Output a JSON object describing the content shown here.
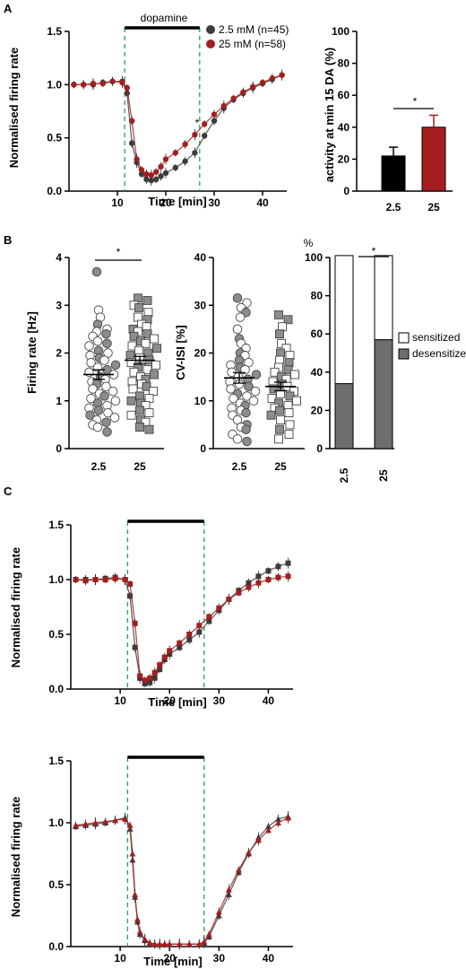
{
  "panel_labels": {
    "a": "A",
    "b": "B",
    "c": "C"
  },
  "colors": {
    "c25": "#3c3c3c",
    "c250": "#a31f1f",
    "stim": "#2e9e4b",
    "gray": "#8c8c8c",
    "desens": "#6e6e6e"
  },
  "chart_data": [
    {
      "id": "A-time",
      "type": "line",
      "title": "",
      "xlabel": "Time [min]",
      "ylabel": "Normalised firing rate",
      "xlim": [
        0,
        45
      ],
      "ylim": [
        0,
        1.5
      ],
      "xticks": [
        10,
        20,
        30,
        40
      ],
      "yticks": [
        0.0,
        0.5,
        1.0,
        1.5
      ],
      "ytick_labels": [
        "0.0",
        "0.5",
        "1.0",
        "1.5"
      ],
      "stim_bar": {
        "label": "dopamine",
        "start": 11.5,
        "end": 27
      },
      "annotation": "*",
      "legend": [
        "2.5 mM (n=45)",
        "25 mM (n=58)"
      ],
      "series": [
        {
          "name": "2.5 mM (n=45)",
          "color": "#3c3c3c",
          "x": [
            1,
            3,
            5,
            7,
            9,
            11,
            12,
            13,
            14,
            15,
            16,
            17,
            18,
            19,
            20,
            22,
            24,
            26,
            28,
            30,
            32,
            34,
            36,
            38,
            40,
            42,
            44
          ],
          "y": [
            1.0,
            1.0,
            1.0,
            1.02,
            1.03,
            1.03,
            0.92,
            0.45,
            0.27,
            0.16,
            0.11,
            0.1,
            0.11,
            0.14,
            0.17,
            0.22,
            0.28,
            0.36,
            0.52,
            0.66,
            0.78,
            0.86,
            0.92,
            0.97,
            1.01,
            1.05,
            1.09
          ]
        },
        {
          "name": "25 mM (n=58)",
          "color": "#a31f1f",
          "x": [
            1,
            3,
            5,
            7,
            9,
            11,
            12,
            13,
            14,
            15,
            16,
            17,
            18,
            19,
            20,
            22,
            24,
            26,
            28,
            30,
            32,
            34,
            36,
            38,
            40,
            42,
            44
          ],
          "y": [
            1.0,
            1.0,
            1.01,
            1.01,
            1.03,
            1.02,
            0.97,
            0.66,
            0.3,
            0.2,
            0.16,
            0.15,
            0.18,
            0.23,
            0.3,
            0.36,
            0.44,
            0.53,
            0.63,
            0.72,
            0.8,
            0.87,
            0.93,
            0.98,
            1.02,
            1.06,
            1.09
          ]
        }
      ]
    },
    {
      "id": "A-bar",
      "type": "bar",
      "title": "",
      "xlabel": "",
      "ylabel": "activity at min 15 DA (%)",
      "categories": [
        "2.5",
        "25"
      ],
      "values": [
        22,
        40
      ],
      "errors": [
        5.5,
        7.5
      ],
      "bar_colors": [
        "#000000",
        "#a31f1f"
      ],
      "ylim": [
        0,
        100
      ],
      "yticks": [
        0,
        20,
        40,
        60,
        80,
        100
      ],
      "annotation": "*"
    },
    {
      "id": "B-rate",
      "type": "scatter",
      "title": "",
      "xlabel": "",
      "ylabel": "Firing rate [Hz]",
      "categories": [
        "2.5",
        "25"
      ],
      "ylim": [
        0,
        4
      ],
      "yticks": [
        0,
        1,
        2,
        3,
        4
      ],
      "annotation": "*",
      "means": [
        1.55,
        1.85
      ],
      "sems": [
        0.1,
        0.08
      ],
      "series": [
        {
          "name": "2.5",
          "values": [
            3.7,
            2.9,
            2.75,
            2.6,
            2.5,
            2.45,
            2.4,
            2.35,
            2.25,
            2.2,
            2.15,
            2.05,
            2.0,
            1.95,
            1.9,
            1.85,
            1.8,
            1.75,
            1.7,
            1.65,
            1.6,
            1.55,
            1.5,
            1.45,
            1.4,
            1.35,
            1.3,
            1.25,
            1.2,
            1.15,
            1.1,
            1.05,
            1.0,
            0.95,
            0.9,
            0.85,
            0.8,
            0.75,
            0.7,
            0.65,
            0.6,
            0.55,
            0.5,
            0.45,
            0.35
          ]
        },
        {
          "name": "25",
          "values": [
            3.15,
            3.1,
            3.0,
            2.95,
            2.85,
            2.75,
            2.7,
            2.6,
            2.55,
            2.5,
            2.45,
            2.4,
            2.35,
            2.3,
            2.25,
            2.2,
            2.15,
            2.1,
            2.05,
            2.0,
            1.95,
            1.9,
            1.85,
            1.8,
            1.75,
            1.7,
            1.65,
            1.6,
            1.55,
            1.5,
            1.45,
            1.4,
            1.35,
            1.3,
            1.25,
            1.2,
            1.1,
            1.05,
            1.0,
            0.95,
            0.9,
            0.8,
            0.75,
            0.7,
            0.6,
            0.55,
            0.45,
            0.4
          ]
        }
      ]
    },
    {
      "id": "B-cv",
      "type": "scatter",
      "title": "",
      "xlabel": "",
      "ylabel": "CV-ISI [%]",
      "categories": [
        "2.5",
        "25"
      ],
      "ylim": [
        0,
        40
      ],
      "yticks": [
        0,
        10,
        20,
        30,
        40
      ],
      "means": [
        14.8,
        13.0
      ],
      "sems": [
        1.1,
        0.9
      ],
      "series": [
        {
          "name": "2.5",
          "values": [
            31.5,
            30.5,
            29.5,
            28.5,
            27.5,
            25,
            23,
            22,
            21,
            20,
            19.5,
            18.5,
            18,
            17.5,
            17,
            16.5,
            16,
            15.5,
            15,
            14.5,
            14,
            13.5,
            13,
            12.5,
            12,
            11.5,
            11,
            10.5,
            10,
            9.5,
            9,
            8.5,
            8,
            7.5,
            7,
            6,
            5,
            4.5,
            4,
            3,
            2,
            1.5
          ]
        },
        {
          "name": "25",
          "values": [
            28,
            27,
            25.5,
            24,
            22,
            21,
            20,
            19.5,
            18.5,
            18,
            17,
            16.5,
            16,
            15.5,
            15,
            14.5,
            14,
            13.5,
            13,
            12.5,
            12,
            11.5,
            11,
            10.5,
            10,
            9.5,
            9,
            8.5,
            8,
            7.5,
            7,
            6,
            5,
            4,
            3,
            2
          ]
        }
      ]
    },
    {
      "id": "B-stack",
      "type": "bar",
      "title": "",
      "xlabel": "",
      "ylabel": "%",
      "categories": [
        "2.5",
        "25"
      ],
      "ylim": [
        0,
        100
      ],
      "yticks": [
        0,
        20,
        40,
        60,
        80,
        100
      ],
      "annotation": "*",
      "legend": [
        "sensitized",
        "desensitized"
      ],
      "series": [
        {
          "name": "desensitized",
          "values": [
            34,
            57
          ]
        },
        {
          "name": "sensitized",
          "values": [
            67,
            44
          ]
        }
      ]
    },
    {
      "id": "C-top",
      "type": "line",
      "title": "",
      "xlabel": "Time [min]",
      "ylabel": "Normalised firing rate",
      "xlim": [
        0,
        45
      ],
      "ylim": [
        0,
        1.5
      ],
      "xticks": [
        10,
        20,
        30,
        40
      ],
      "yticks": [
        0.0,
        0.5,
        1.0,
        1.5
      ],
      "ytick_labels": [
        "0.0",
        "0.5",
        "1.0",
        "1.5"
      ],
      "stim_bar": {
        "label": "",
        "start": 11.5,
        "end": 27
      },
      "series": [
        {
          "name": "",
          "color": "#3c3c3c",
          "x": [
            1,
            3,
            5,
            7,
            9,
            11,
            12,
            13,
            14,
            15,
            16,
            17,
            18,
            19,
            20,
            22,
            24,
            26,
            28,
            30,
            32,
            34,
            36,
            38,
            40,
            42,
            44
          ],
          "y": [
            1.0,
            1.0,
            1.0,
            1.01,
            1.02,
            1.0,
            0.85,
            0.38,
            0.1,
            0.05,
            0.06,
            0.1,
            0.18,
            0.27,
            0.32,
            0.38,
            0.45,
            0.52,
            0.62,
            0.72,
            0.82,
            0.9,
            0.97,
            1.03,
            1.08,
            1.12,
            1.15
          ]
        },
        {
          "name": "",
          "color": "#a31f1f",
          "x": [
            1,
            3,
            5,
            7,
            9,
            11,
            12,
            13,
            14,
            15,
            16,
            17,
            18,
            19,
            20,
            22,
            24,
            26,
            28,
            30,
            32,
            34,
            36,
            38,
            40,
            42,
            44
          ],
          "y": [
            1.0,
            0.99,
            1.0,
            1.0,
            1.01,
            1.0,
            0.96,
            0.6,
            0.12,
            0.08,
            0.1,
            0.15,
            0.22,
            0.29,
            0.35,
            0.42,
            0.5,
            0.58,
            0.66,
            0.74,
            0.82,
            0.88,
            0.93,
            0.97,
            1.0,
            1.02,
            1.03
          ]
        }
      ]
    },
    {
      "id": "C-bottom",
      "type": "line",
      "title": "",
      "xlabel": "Time [min]",
      "ylabel": "Normalised firing rate",
      "xlim": [
        0,
        45
      ],
      "ylim": [
        0,
        1.5
      ],
      "xticks": [
        10,
        20,
        30,
        40
      ],
      "yticks": [
        0.0,
        0.5,
        1.0,
        1.5
      ],
      "ytick_labels": [
        "0.0",
        "0.5",
        "1.0",
        "1.5"
      ],
      "stim_bar": {
        "label": "",
        "start": 11.5,
        "end": 27
      },
      "series": [
        {
          "name": "",
          "color": "#3c3c3c",
          "x": [
            1,
            3,
            5,
            7,
            9,
            11,
            12,
            12.5,
            13,
            13.5,
            14,
            15,
            16,
            17,
            18,
            19,
            20,
            22,
            24,
            26,
            27,
            28,
            30,
            32,
            34,
            36,
            38,
            40,
            42,
            44
          ],
          "y": [
            0.97,
            0.98,
            0.99,
            1.0,
            1.02,
            1.04,
            0.95,
            0.7,
            0.4,
            0.2,
            0.1,
            0.05,
            0.03,
            0.02,
            0.02,
            0.02,
            0.02,
            0.02,
            0.02,
            0.02,
            0.03,
            0.08,
            0.25,
            0.42,
            0.6,
            0.75,
            0.88,
            0.97,
            1.03,
            1.05
          ]
        },
        {
          "name": "",
          "color": "#a31f1f",
          "x": [
            1,
            3,
            5,
            7,
            9,
            11,
            12,
            12.5,
            13,
            13.5,
            14,
            15,
            16,
            17,
            18,
            19,
            20,
            22,
            24,
            26,
            27,
            28,
            30,
            32,
            34,
            36,
            38,
            40,
            42,
            44
          ],
          "y": [
            0.98,
            0.99,
            1.0,
            1.01,
            1.02,
            1.03,
            0.98,
            0.75,
            0.42,
            0.22,
            0.12,
            0.06,
            0.03,
            0.02,
            0.02,
            0.02,
            0.02,
            0.02,
            0.02,
            0.02,
            0.04,
            0.1,
            0.28,
            0.46,
            0.62,
            0.76,
            0.86,
            0.94,
            1.0,
            1.04
          ]
        }
      ]
    }
  ]
}
